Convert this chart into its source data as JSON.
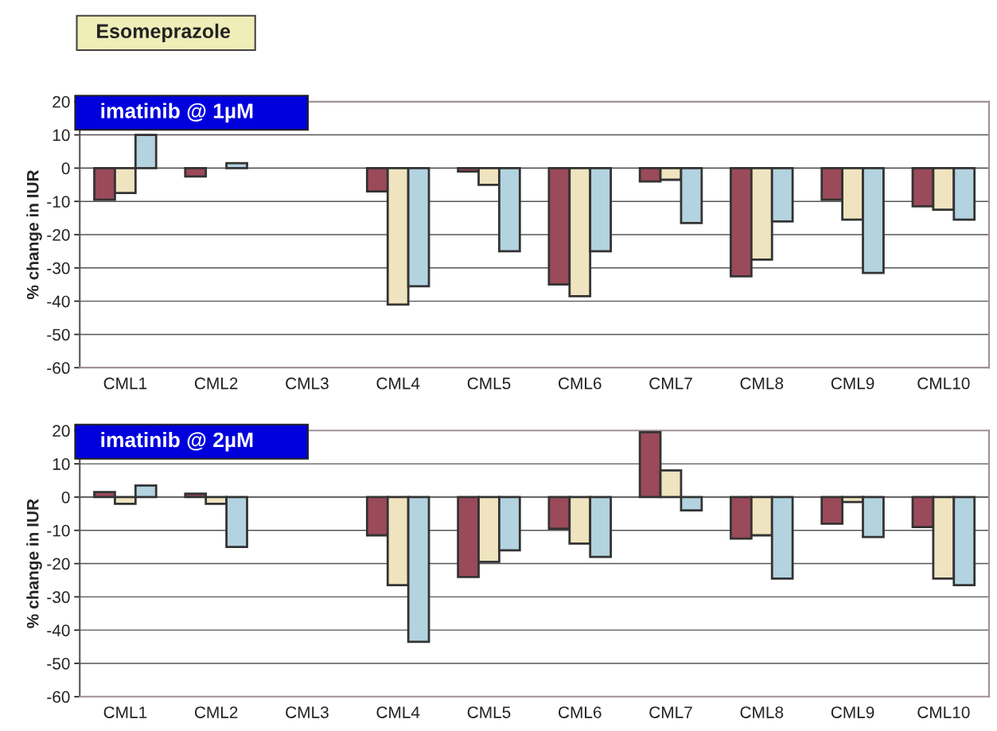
{
  "chart_data": [
    {
      "type": "bar",
      "title": "imatinib @ 1µM",
      "ylabel": "% change in IUR",
      "annotations": [
        "Esomeprazole"
      ],
      "categories": [
        "CML1",
        "CML2",
        "CML3",
        "CML4",
        "CML5",
        "CML6",
        "CML7",
        "CML8",
        "CML9",
        "CML10"
      ],
      "series": [
        {
          "color": "#9b4a5a",
          "values": [
            -9.5,
            -2.5,
            null,
            -7,
            -1,
            -35,
            -4,
            -32.5,
            -9.5,
            -11.5
          ]
        },
        {
          "color": "#efe4bf",
          "values": [
            -7.5,
            null,
            null,
            -41,
            -5,
            -38.5,
            -3.5,
            -27.5,
            -15.5,
            -12.5
          ]
        },
        {
          "color": "#b3d3e0",
          "values": [
            10,
            1.5,
            null,
            -35.5,
            -25,
            -25,
            -16.5,
            -16,
            -31.5,
            -15.5
          ]
        }
      ],
      "ylim": [
        -60,
        20
      ],
      "yticks": [
        -60,
        -50,
        -40,
        -30,
        -20,
        -10,
        0,
        10,
        20
      ],
      "grid": "y",
      "legend": false
    },
    {
      "type": "bar",
      "title": "imatinib @ 2µM",
      "ylabel": "% change in IUR",
      "categories": [
        "CML1",
        "CML2",
        "CML3",
        "CML4",
        "CML5",
        "CML6",
        "CML7",
        "CML8",
        "CML9",
        "CML10"
      ],
      "series": [
        {
          "color": "#9b4a5a",
          "values": [
            1.5,
            1,
            null,
            -11.5,
            -24,
            -9.5,
            19.5,
            -12.5,
            -8,
            -9
          ]
        },
        {
          "color": "#efe4bf",
          "values": [
            -2,
            -2,
            null,
            -26.5,
            -19.5,
            -14,
            8,
            -11.5,
            -1.5,
            -24.5
          ]
        },
        {
          "color": "#b3d3e0",
          "values": [
            3.5,
            -15,
            null,
            -43.5,
            -16,
            -18,
            -4,
            -24.5,
            -12,
            -26.5
          ]
        }
      ],
      "ylim": [
        -60,
        20
      ],
      "yticks": [
        -60,
        -50,
        -40,
        -30,
        -20,
        -10,
        0,
        10,
        20
      ],
      "grid": "y",
      "legend": false
    }
  ]
}
